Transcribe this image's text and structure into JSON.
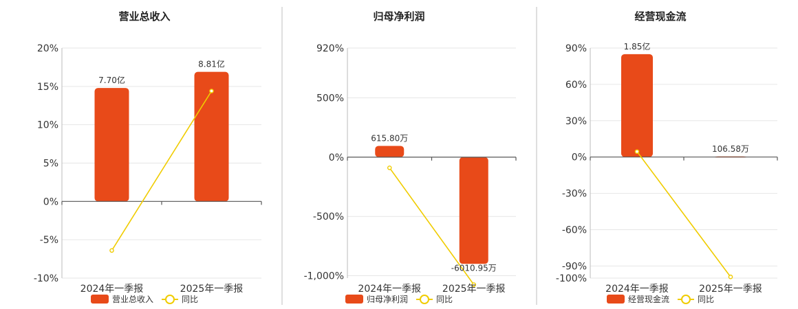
{
  "colors": {
    "bar": "#e84a19",
    "line": "#f0cc00"
  },
  "legend": {
    "line_label": "同比"
  },
  "chart_data": [
    {
      "type": "bar",
      "title": "营业总收入",
      "categories": [
        "2024年一季报",
        "2025年一季报"
      ],
      "ylim": [
        -10,
        20
      ],
      "yticks": [
        20,
        15,
        10,
        5,
        0,
        -5,
        -10
      ],
      "ytick_labels": [
        "20%",
        "15%",
        "10%",
        "5%",
        "0%",
        "-5%",
        "-10%"
      ],
      "series": [
        {
          "name": "营业总收入",
          "kind": "bar",
          "values": [
            14.8,
            16.9
          ],
          "labels": [
            "7.70亿",
            "8.81亿"
          ]
        },
        {
          "name": "同比",
          "kind": "line",
          "values": [
            -6.4,
            14.4
          ]
        }
      ],
      "grid": true,
      "legend_position": "bottom"
    },
    {
      "type": "bar",
      "title": "归母净利润",
      "categories": [
        "2024年一季报",
        "2025年一季报"
      ],
      "ylim": [
        -1020,
        920
      ],
      "yticks": [
        920,
        500,
        0,
        -500,
        -1000
      ],
      "ytick_labels": [
        "920%",
        "500%",
        "0%",
        "-500%",
        "-1,000%"
      ],
      "series": [
        {
          "name": "归母净利润",
          "kind": "bar",
          "values": [
            95,
            -900
          ],
          "labels": [
            "615.80万",
            "-6010.95万"
          ]
        },
        {
          "name": "同比",
          "kind": "line",
          "values": [
            -90,
            -1075
          ]
        }
      ],
      "grid": true,
      "legend_position": "bottom"
    },
    {
      "type": "bar",
      "title": "经营现金流",
      "categories": [
        "2024年一季报",
        "2025年一季报"
      ],
      "ylim": [
        -100,
        90
      ],
      "yticks": [
        90,
        60,
        30,
        0,
        -30,
        -60,
        -90,
        -100
      ],
      "ytick_labels": [
        "90%",
        "60%",
        "30%",
        "0%",
        "-30%",
        "-60%",
        "-90%",
        "-100%"
      ],
      "series": [
        {
          "name": "经营现金流",
          "kind": "bar",
          "values": [
            85,
            0.5
          ],
          "labels": [
            "1.85亿",
            "106.58万"
          ]
        },
        {
          "name": "同比",
          "kind": "line",
          "values": [
            4.5,
            -99
          ]
        }
      ],
      "grid": true,
      "legend_position": "bottom"
    }
  ]
}
